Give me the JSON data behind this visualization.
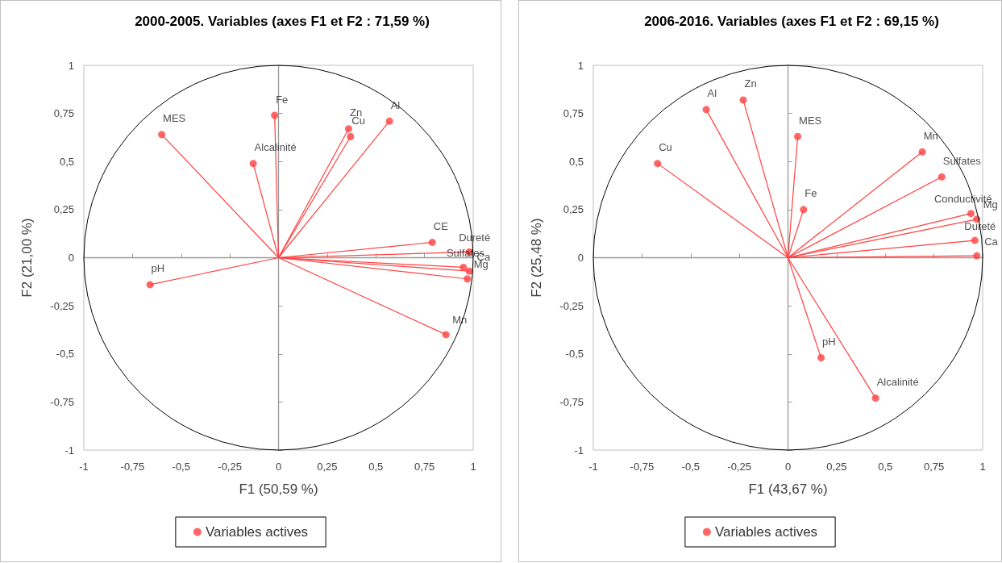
{
  "chart_data": [
    {
      "type": "scatter",
      "title": "2000-2005. Variables (axes F1 et F2 : 71,59 %)",
      "xlabel": "F1 (50,59 %)",
      "ylabel": "F2 (21,00 %)",
      "legend": "bottom",
      "marker": "circle",
      "xlim": [
        -1,
        1
      ],
      "ylim": [
        -1,
        1
      ],
      "xticks": [
        -1,
        {
          "value": -0.75,
          "label": "-0,75"
        },
        {
          "value": -0.5,
          "label": "-0,5"
        },
        {
          "value": -0.25,
          "label": "-0,25"
        },
        0,
        {
          "value": 0.25,
          "label": "0,25"
        },
        {
          "value": 0.5,
          "label": "0,5"
        },
        {
          "value": 0.75,
          "label": "0,75"
        },
        1
      ],
      "yticks": [
        -1,
        {
          "value": -0.75,
          "label": "-0,75"
        },
        {
          "value": -0.5,
          "label": "-0,5"
        },
        {
          "value": -0.25,
          "label": "-0,25"
        },
        0,
        {
          "value": 0.25,
          "label": "0,25"
        },
        {
          "value": 0.5,
          "label": "0,5"
        },
        {
          "value": 0.75,
          "label": "0,75"
        },
        1
      ],
      "series": [
        {
          "name": "Variables actives",
          "color": "#ff4040",
          "x": [
            -0.02,
            -0.6,
            -0.13,
            0.36,
            0.37,
            0.57,
            0.79,
            0.98,
            0.95,
            0.98,
            0.97,
            -0.66,
            0.86
          ],
          "values": [
            0.74,
            0.64,
            0.49,
            0.67,
            0.63,
            0.71,
            0.08,
            0.03,
            -0.05,
            -0.07,
            -0.11,
            -0.14,
            -0.4
          ],
          "value_labels": [
            "Fe",
            "MES",
            "Alcalinité",
            "Zn",
            "Cu",
            "Al",
            "CE",
            "Dureté",
            "Sulfates",
            "Ca",
            "Mg",
            "pH",
            "Mn"
          ]
        }
      ]
    },
    {
      "type": "scatter",
      "title": "2006-2016. Variables (axes F1 et F2 : 69,15 %)",
      "xlabel": "F1 (43,67 %)",
      "ylabel": "F2 (25,48 %)",
      "legend": "bottom",
      "marker": "circle",
      "xlim": [
        -1,
        1
      ],
      "ylim": [
        -1,
        1
      ],
      "xticks": [
        -1,
        {
          "value": -0.75,
          "label": "-0,75"
        },
        {
          "value": -0.5,
          "label": "-0,5"
        },
        {
          "value": -0.25,
          "label": "-0,25"
        },
        0,
        {
          "value": 0.25,
          "label": "0,25"
        },
        {
          "value": 0.5,
          "label": "0,5"
        },
        {
          "value": 0.75,
          "label": "0,75"
        },
        1
      ],
      "yticks": [
        -1,
        {
          "value": -0.75,
          "label": "-0,75"
        },
        {
          "value": -0.5,
          "label": "-0,5"
        },
        {
          "value": -0.25,
          "label": "-0,25"
        },
        0,
        {
          "value": 0.25,
          "label": "0,25"
        },
        {
          "value": 0.5,
          "label": "0,5"
        },
        {
          "value": 0.75,
          "label": "0,75"
        },
        1
      ],
      "series": [
        {
          "name": "Variables actives",
          "color": "#ff4040",
          "x": [
            -0.23,
            -0.42,
            -0.67,
            0.05,
            0.69,
            0.79,
            0.08,
            0.94,
            0.97,
            0.96,
            0.97,
            0.17,
            0.45
          ],
          "values": [
            0.82,
            0.77,
            0.49,
            0.63,
            0.55,
            0.42,
            0.25,
            0.23,
            0.2,
            0.09,
            0.01,
            -0.52,
            -0.73
          ],
          "value_labels": [
            "Zn",
            "Al",
            "Cu",
            "MES",
            "Mn",
            "Sulfates",
            "Fe",
            "Conductivité",
            "Mg",
            "Dureté",
            "Ca",
            "pH",
            "Alcalinité"
          ]
        }
      ]
    }
  ]
}
